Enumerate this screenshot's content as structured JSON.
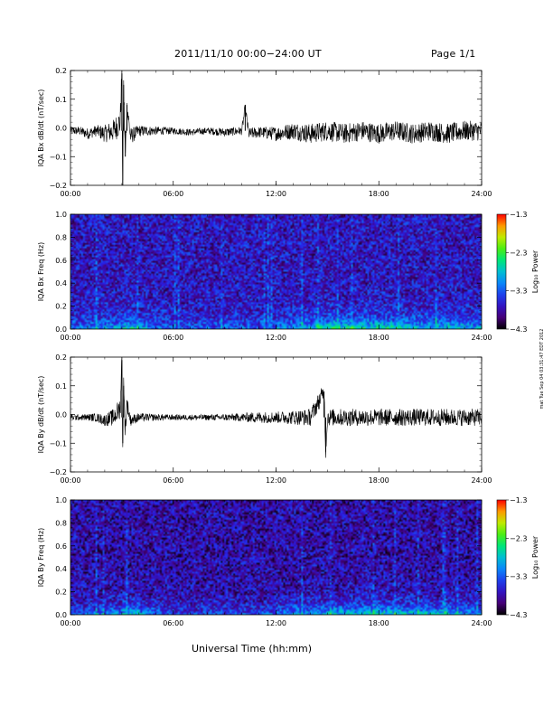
{
  "header": {
    "title": "2011/11/10   00:00−24:00 UT",
    "page": "Page 1/1"
  },
  "x_axis_title": "Universal Time (hh:mm)",
  "side_stamp": "mat Tue Sep 04 03:31:47 EDT 2012",
  "chart_data": [
    {
      "type": "line",
      "ylabel": "IQA Bx dB/dt (nT/sec)",
      "xticks": [
        "00:00",
        "06:00",
        "12:00",
        "18:00",
        "24:00"
      ],
      "yticks": [
        "0.2",
        "0.1",
        "0.0",
        "−0.1",
        "−0.2"
      ],
      "ylim": [
        -0.2,
        0.2
      ],
      "xlim_hours": [
        0,
        24
      ],
      "grid": false,
      "series": [
        {
          "x_hours": [
            0,
            0.5,
            1,
            1.5,
            2,
            2.5,
            2.9,
            3.0,
            3.05,
            3.1,
            3.2,
            3.3,
            3.5,
            4,
            5,
            6,
            7,
            8,
            9,
            10,
            10.2,
            10.4,
            11,
            12,
            13,
            14,
            15,
            16,
            17,
            18,
            19,
            20,
            21,
            22,
            23,
            24
          ],
          "values": [
            -0.01,
            -0.01,
            -0.02,
            -0.01,
            -0.02,
            -0.01,
            0.02,
            0.19,
            -0.2,
            0.15,
            -0.1,
            0.08,
            -0.03,
            -0.01,
            -0.01,
            -0.01,
            -0.015,
            -0.01,
            -0.015,
            -0.01,
            0.07,
            -0.02,
            -0.015,
            -0.02,
            -0.01,
            -0.02,
            -0.01,
            -0.02,
            -0.01,
            -0.02,
            -0.01,
            -0.02,
            -0.01,
            -0.02,
            -0.01,
            -0.01
          ],
          "noise_amplitude": [
            0.015,
            0.015,
            0.02,
            0.02,
            0.03,
            0.04,
            0.05,
            0.05,
            0.05,
            0.05,
            0.05,
            0.04,
            0.03,
            0.02,
            0.015,
            0.012,
            0.012,
            0.012,
            0.015,
            0.015,
            0.02,
            0.02,
            0.02,
            0.025,
            0.03,
            0.035,
            0.035,
            0.035,
            0.035,
            0.035,
            0.035,
            0.035,
            0.035,
            0.035,
            0.035,
            0.035
          ]
        }
      ]
    },
    {
      "type": "heatmap",
      "ylabel": "IQA Bx Freq (Hz)",
      "xticks": [
        "00:00",
        "06:00",
        "12:00",
        "18:00",
        "24:00"
      ],
      "yticks": [
        "1.0",
        "0.8",
        "0.6",
        "0.4",
        "0.2",
        "0.0"
      ],
      "ylim": [
        0,
        1
      ],
      "xlim_hours": [
        0,
        24
      ],
      "colorbar": {
        "label": "Log₁₀ Power",
        "ticks": [
          "−1.3",
          "−2.3",
          "−3.3",
          "−4.3"
        ],
        "range": [
          -4.3,
          -1.3
        ]
      },
      "low_freq_band_power_hourly": [
        -3.2,
        -3.1,
        -3.0,
        -2.8,
        -3.0,
        -3.2,
        -3.3,
        -3.3,
        -3.3,
        -3.3,
        -3.3,
        -3.2,
        -3.0,
        -2.9,
        -2.7,
        -2.6,
        -2.6,
        -2.6,
        -2.6,
        -2.7,
        -2.8,
        -2.8,
        -2.8,
        -2.9
      ],
      "background_power": -3.7
    },
    {
      "type": "line",
      "ylabel": "IQA By dB/dt (nT/sec)",
      "xticks": [
        "00:00",
        "06:00",
        "12:00",
        "18:00",
        "24:00"
      ],
      "yticks": [
        "0.2",
        "0.1",
        "0.0",
        "−0.1",
        "−0.2"
      ],
      "ylim": [
        -0.2,
        0.2
      ],
      "xlim_hours": [
        0,
        24
      ],
      "grid": false,
      "series": [
        {
          "x_hours": [
            0,
            0.5,
            1,
            1.5,
            2,
            2.5,
            2.9,
            3.0,
            3.05,
            3.1,
            3.2,
            3.3,
            3.5,
            4,
            5,
            6,
            7,
            8,
            9,
            10,
            11,
            12,
            13,
            14,
            14.8,
            14.9,
            15,
            16,
            17,
            18,
            19,
            20,
            21,
            22,
            23,
            24
          ],
          "values": [
            -0.01,
            -0.01,
            -0.01,
            -0.01,
            -0.02,
            -0.01,
            0.02,
            0.19,
            -0.1,
            0.1,
            -0.05,
            0.04,
            -0.02,
            -0.01,
            -0.01,
            -0.01,
            -0.01,
            -0.01,
            -0.01,
            -0.01,
            -0.01,
            -0.01,
            -0.01,
            -0.01,
            0.08,
            -0.13,
            -0.01,
            -0.01,
            -0.01,
            -0.01,
            -0.01,
            -0.01,
            -0.01,
            -0.01,
            -0.01,
            -0.01
          ],
          "noise_amplitude": [
            0.01,
            0.01,
            0.012,
            0.015,
            0.02,
            0.03,
            0.04,
            0.04,
            0.04,
            0.04,
            0.04,
            0.03,
            0.02,
            0.015,
            0.012,
            0.01,
            0.01,
            0.01,
            0.012,
            0.015,
            0.02,
            0.02,
            0.025,
            0.03,
            0.03,
            0.03,
            0.03,
            0.03,
            0.03,
            0.03,
            0.03,
            0.03,
            0.03,
            0.03,
            0.03,
            0.03
          ]
        }
      ]
    },
    {
      "type": "heatmap",
      "ylabel": "IQA By Freq (Hz)",
      "xticks": [
        "00:00",
        "06:00",
        "12:00",
        "18:00",
        "24:00"
      ],
      "yticks": [
        "1.0",
        "0.8",
        "0.6",
        "0.4",
        "0.2",
        "0.0"
      ],
      "ylim": [
        0,
        1
      ],
      "xlim_hours": [
        0,
        24
      ],
      "colorbar": {
        "label": "Log₁₀ Power",
        "ticks": [
          "−1.3",
          "−2.3",
          "−3.3",
          "−4.3"
        ],
        "range": [
          -4.3,
          -1.3
        ]
      },
      "low_freq_band_power_hourly": [
        -3.3,
        -3.2,
        -3.1,
        -2.8,
        -3.1,
        -3.3,
        -3.4,
        -3.4,
        -3.4,
        -3.4,
        -3.4,
        -3.3,
        -3.1,
        -3.0,
        -2.9,
        -2.8,
        -2.8,
        -2.7,
        -2.7,
        -2.8,
        -2.8,
        -2.9,
        -2.9,
        -3.0
      ],
      "background_power": -3.8
    }
  ]
}
